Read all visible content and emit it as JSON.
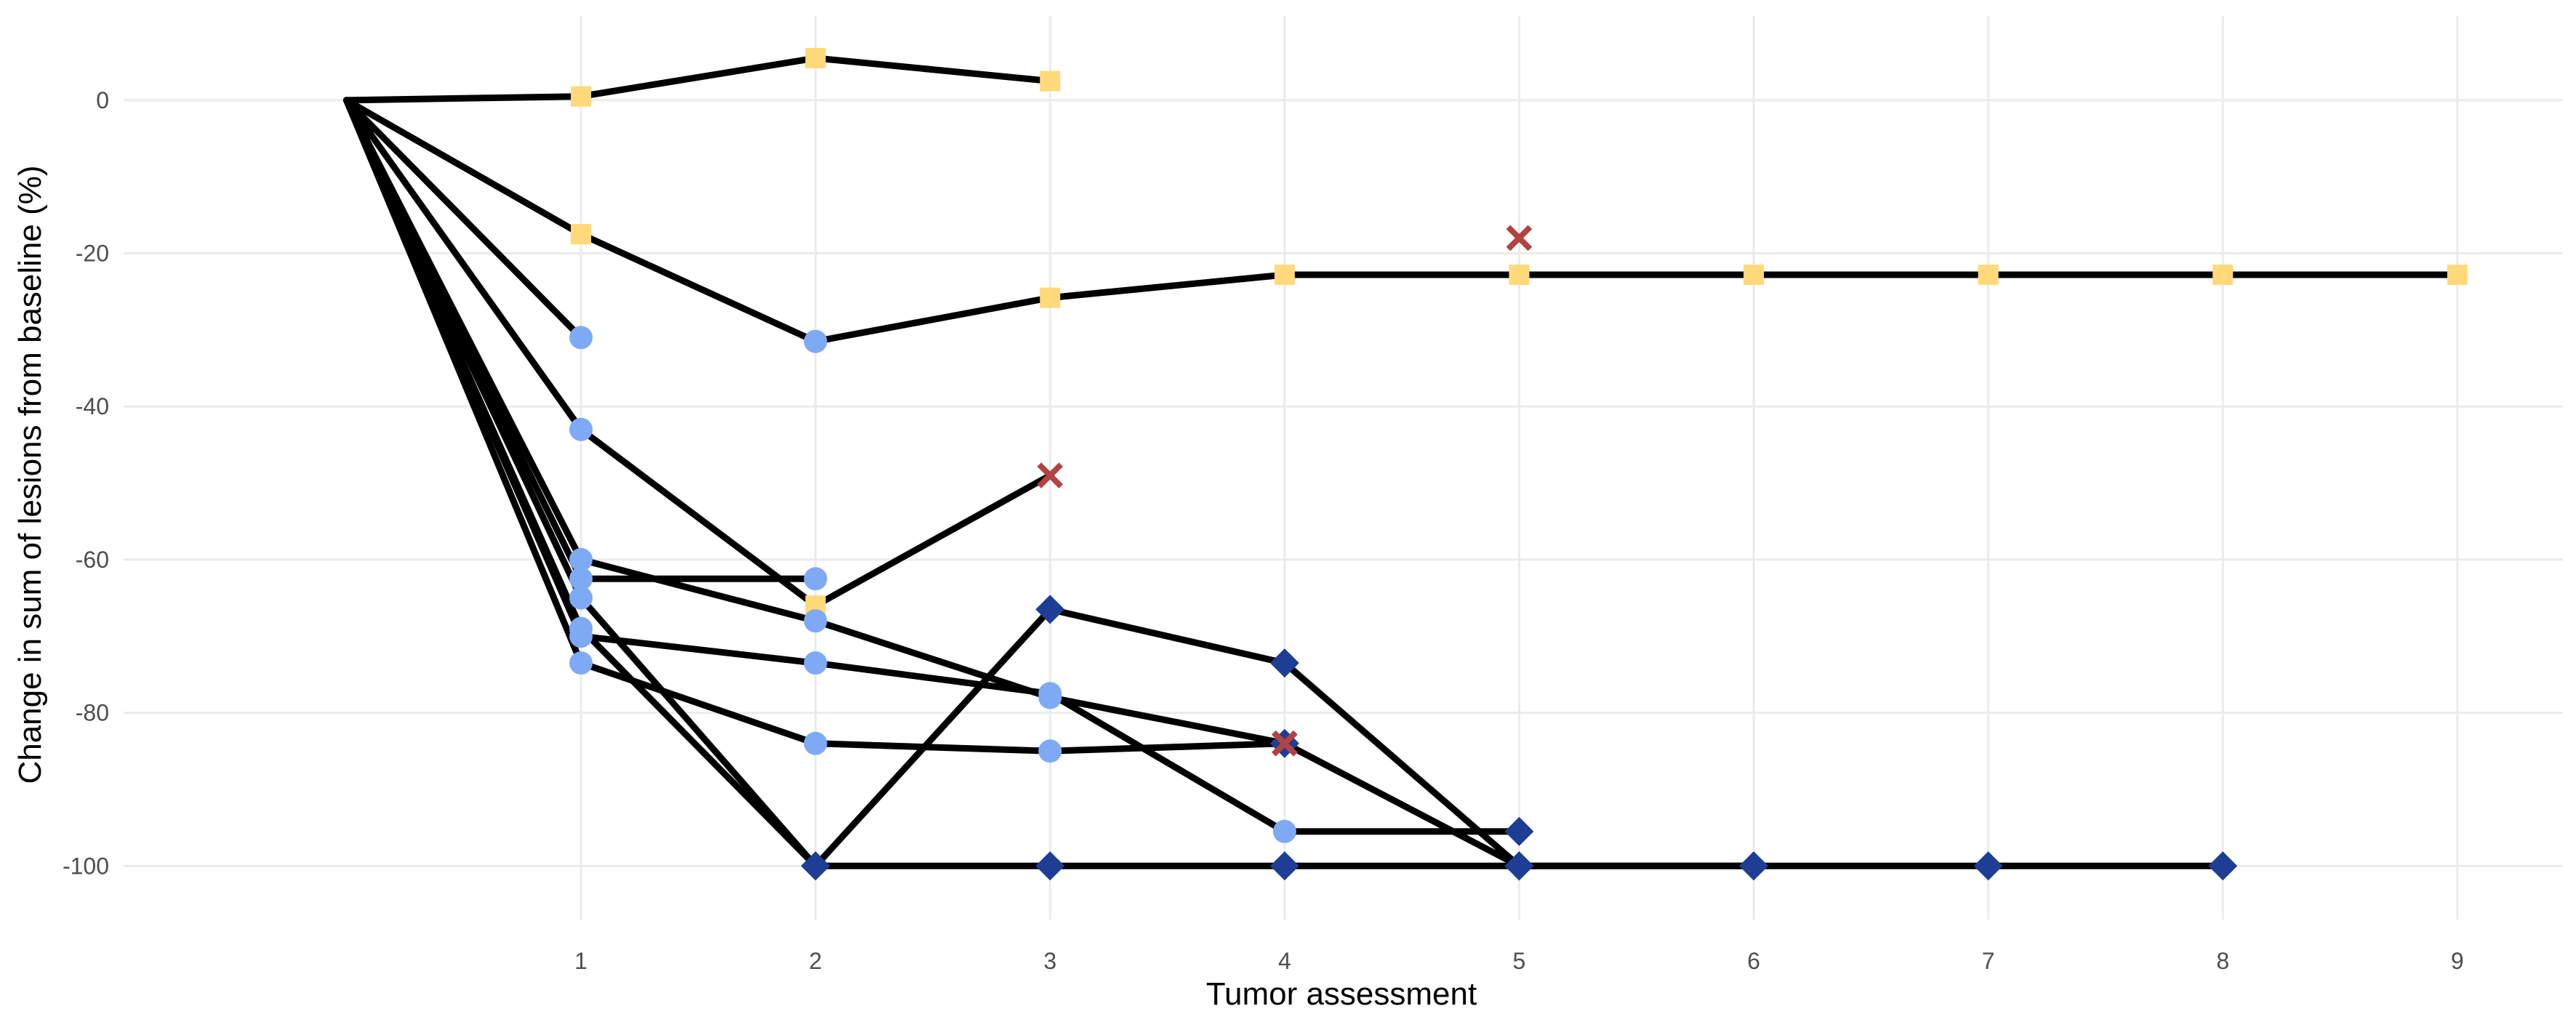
{
  "chart_data": {
    "type": "line",
    "xlabel": "Tumor assessment",
    "ylabel": "Change in sum of lesions from baseline (%)",
    "xlim": [
      -0.95,
      9.45
    ],
    "ylim": [
      -107,
      11
    ],
    "x_ticks": [
      1,
      2,
      3,
      4,
      5,
      6,
      7,
      8,
      9
    ],
    "y_ticks": [
      0,
      -20,
      -40,
      -60,
      -80,
      -100
    ],
    "grid": true,
    "legend": "none",
    "line_color": "#000000",
    "marker_colors": {
      "circle": "#7eaaf5",
      "square": "#ffd97a",
      "diamond": "#1d3e94",
      "cross": "#b34242"
    },
    "series": [
      {
        "x": [
          0,
          1,
          2,
          3
        ],
        "y": [
          0,
          0.5,
          5.5,
          2.5
        ],
        "markers": [
          "none",
          "square",
          "square",
          "square"
        ]
      },
      {
        "x": [
          0,
          1,
          2,
          3,
          4,
          5,
          6,
          7,
          8,
          9
        ],
        "y": [
          0,
          -17.5,
          -31.5,
          -25.8,
          -22.8,
          -22.8,
          -22.8,
          -22.8,
          -22.8,
          -22.8
        ],
        "markers": [
          "none",
          "square",
          "circle",
          "square",
          "square",
          "square",
          "square",
          "square",
          "square",
          "square"
        ]
      },
      {
        "x": [
          0,
          1
        ],
        "y": [
          0,
          -31
        ],
        "markers": [
          "none",
          "circle"
        ]
      },
      {
        "x": [
          0,
          1,
          2,
          3
        ],
        "y": [
          0,
          -43,
          -66,
          -49
        ],
        "markers": [
          "none",
          "circle",
          "square",
          "cross"
        ]
      },
      {
        "x": [
          0,
          1,
          2,
          3,
          4,
          5,
          6
        ],
        "y": [
          0,
          -60,
          -68,
          -78,
          -84,
          -100,
          -100
        ],
        "markers": [
          "none",
          "circle",
          "circle",
          "circle",
          "cross",
          "diamond",
          "diamond"
        ]
      },
      {
        "x": [
          0,
          1,
          2
        ],
        "y": [
          0,
          -62.5,
          -62.5
        ],
        "markers": [
          "none",
          "circle",
          "circle"
        ]
      },
      {
        "x": [
          0,
          1,
          2,
          3,
          4,
          5
        ],
        "y": [
          0,
          -65,
          -100,
          -66.5,
          -73.5,
          -100
        ],
        "markers": [
          "none",
          "circle",
          "diamond",
          "diamond",
          "diamond",
          "diamond"
        ]
      },
      {
        "x": [
          0,
          1,
          2,
          3,
          4,
          5,
          6,
          7,
          8
        ],
        "y": [
          0,
          -69,
          -100,
          -100,
          -100,
          -100,
          -100,
          -100,
          -100
        ],
        "markers": [
          "none",
          "circle",
          "diamond",
          "diamond",
          "diamond",
          "diamond",
          "diamond",
          "diamond",
          "diamond"
        ]
      },
      {
        "x": [
          0,
          1,
          2,
          3,
          4,
          5
        ],
        "y": [
          0,
          -70,
          -73.5,
          -77.5,
          -95.5,
          -95.5
        ],
        "markers": [
          "none",
          "circle",
          "circle",
          "circle",
          "circle",
          "diamond"
        ]
      },
      {
        "x": [
          0,
          1,
          2,
          3,
          4
        ],
        "y": [
          0,
          -73.5,
          -84,
          -85,
          -84
        ],
        "markers": [
          "none",
          "circle",
          "circle",
          "circle",
          "diamond"
        ]
      }
    ],
    "annotations": [
      {
        "x": 5,
        "y": -18,
        "marker": "cross"
      },
      {
        "x": 4,
        "y": -84,
        "marker": "cross"
      }
    ]
  }
}
